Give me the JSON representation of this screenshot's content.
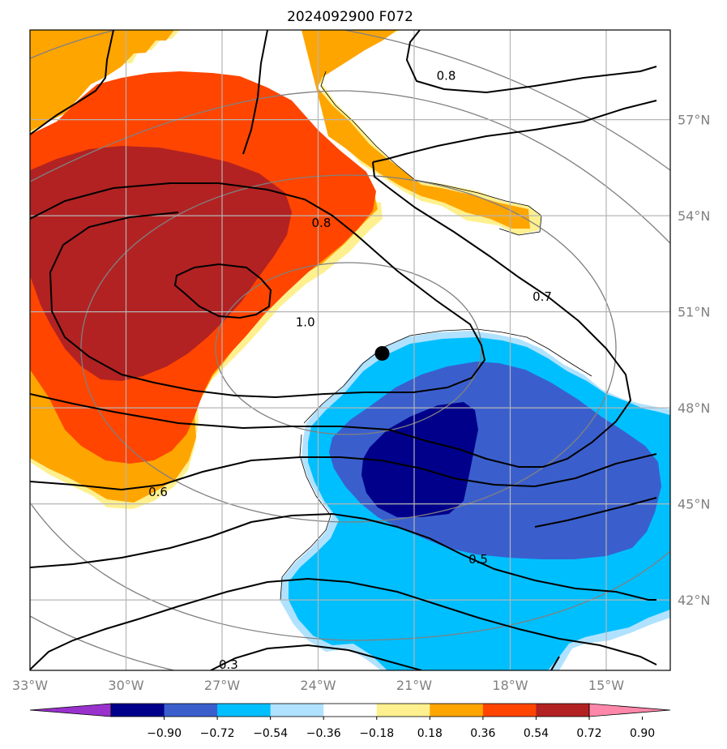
{
  "chart_data": {
    "type": "heatmap",
    "title": "2024092900 F072",
    "map": {
      "lon_range": [
        -33,
        -13
      ],
      "lat_range": [
        39.8,
        59.8
      ],
      "lon_ticks": [
        {
          "value": -33,
          "label": "33°W"
        },
        {
          "value": -30,
          "label": "30°W"
        },
        {
          "value": -27,
          "label": "27°W"
        },
        {
          "value": -24,
          "label": "24°W"
        },
        {
          "value": -21,
          "label": "21°W"
        },
        {
          "value": -18,
          "label": "18°W"
        },
        {
          "value": -15,
          "label": "15°W"
        }
      ],
      "lat_ticks": [
        {
          "value": 57,
          "label": "57°N"
        },
        {
          "value": 54,
          "label": "54°N"
        },
        {
          "value": 51,
          "label": "51°N"
        },
        {
          "value": 48,
          "label": "48°N"
        },
        {
          "value": 45,
          "label": "45°N"
        },
        {
          "value": 42,
          "label": "42°N"
        }
      ],
      "grid": true,
      "marker": {
        "lon": -22.0,
        "lat": 49.7,
        "color": "#000000"
      }
    },
    "colorbar": {
      "levels": [
        "−0.90",
        "−0.72",
        "−0.54",
        "−0.36",
        "−0.18",
        "0.18",
        "0.36",
        "0.54",
        "0.72",
        "0.90"
      ],
      "colors": [
        "#9932cc",
        "#00008b",
        "#3a5fcd",
        "#00bfff",
        "#b0e2ff",
        "#ffffff",
        "#fff08f",
        "#ffa500",
        "#ff4500",
        "#b22222",
        "#ff88aa"
      ],
      "extend": "both"
    },
    "contour_labels": [
      {
        "text": "0.8",
        "lon": -20.0,
        "lat": 58.4
      },
      {
        "text": "0.8",
        "lon": -23.9,
        "lat": 53.8
      },
      {
        "text": "0.7",
        "lon": -17.0,
        "lat": 51.5
      },
      {
        "text": "1.0",
        "lon": -24.4,
        "lat": 50.7
      },
      {
        "text": "0.6",
        "lon": -29.0,
        "lat": 45.4
      },
      {
        "text": "0.5",
        "lon": -19.0,
        "lat": 43.3
      },
      {
        "text": "0.3",
        "lon": -26.8,
        "lat": 40.0
      }
    ]
  }
}
